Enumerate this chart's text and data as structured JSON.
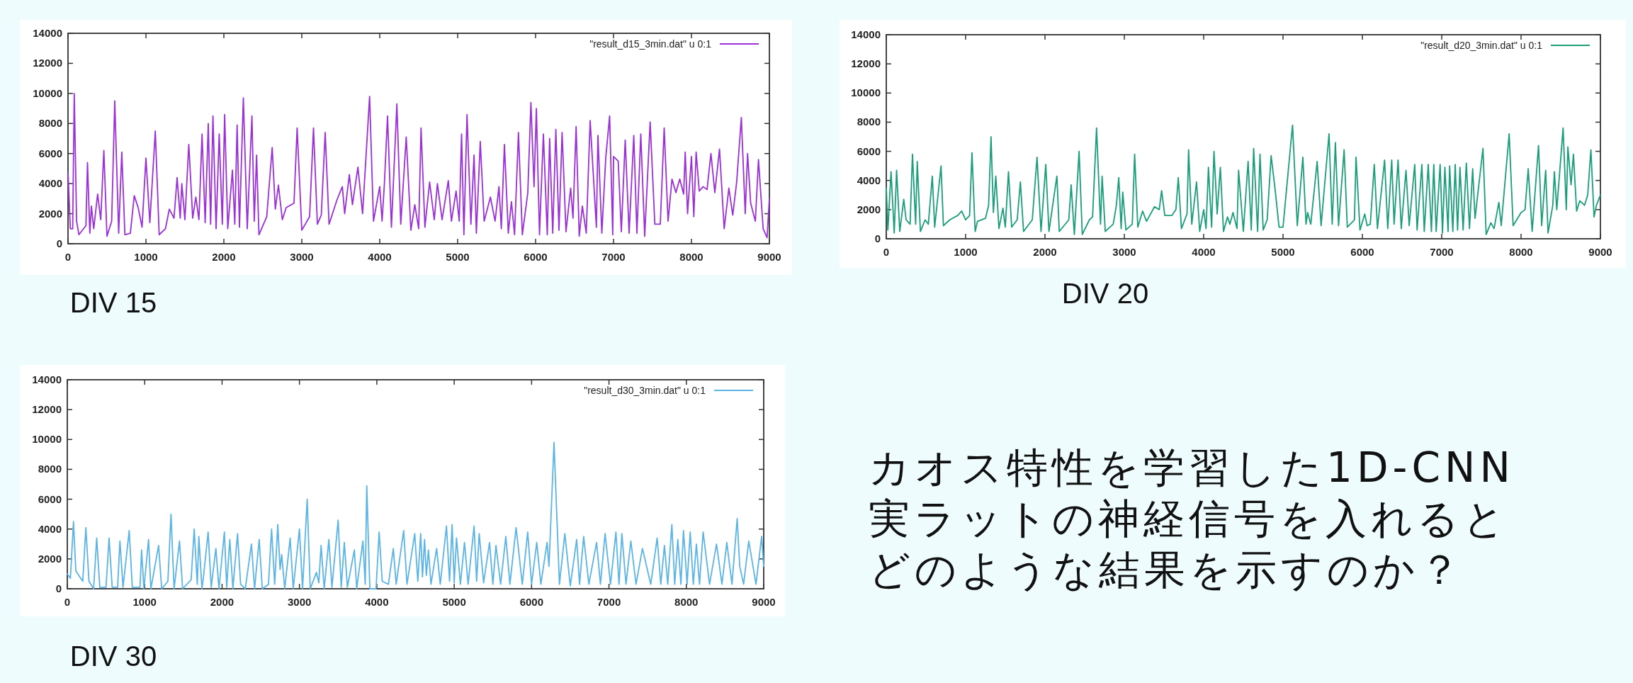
{
  "chart_data": [
    {
      "type": "line",
      "title": "DIV 15",
      "xlim": [
        0,
        9000
      ],
      "ylim": [
        0,
        14000
      ],
      "xticks": [
        0,
        1000,
        2000,
        3000,
        4000,
        5000,
        6000,
        7000,
        8000,
        9000
      ],
      "yticks": [
        0,
        2000,
        4000,
        6000,
        8000,
        10000,
        12000,
        14000
      ],
      "grid": false,
      "legend": "top right",
      "marker": "none",
      "line_style": "solid",
      "series": [
        {
          "name": "\"result_d15_3min.dat\" u 0:1",
          "color": "#9b30d9",
          "x": [
            0,
            30,
            60,
            80,
            110,
            140,
            200,
            230,
            250,
            280,
            300,
            330,
            380,
            420,
            460,
            500,
            560,
            600,
            650,
            690,
            730,
            800,
            850,
            900,
            950,
            1000,
            1050,
            1120,
            1170,
            1250,
            1300,
            1360,
            1400,
            1440,
            1460,
            1500,
            1550,
            1600,
            1640,
            1680,
            1720,
            1760,
            1800,
            1830,
            1860,
            1900,
            1940,
            1980,
            2010,
            2050,
            2110,
            2140,
            2170,
            2200,
            2250,
            2300,
            2360,
            2390,
            2420,
            2450,
            2550,
            2620,
            2660,
            2700,
            2750,
            2800,
            2900,
            2940,
            3000,
            3100,
            3150,
            3200,
            3250,
            3300,
            3350,
            3450,
            3520,
            3550,
            3610,
            3650,
            3720,
            3780,
            3870,
            3920,
            4000,
            4030,
            4060,
            4100,
            4150,
            4220,
            4270,
            4340,
            4400,
            4450,
            4500,
            4530,
            4580,
            4640,
            4700,
            4740,
            4800,
            4880,
            4920,
            4980,
            5020,
            5050,
            5080,
            5120,
            5170,
            5210,
            5240,
            5290,
            5340,
            5420,
            5480,
            5530,
            5560,
            5600,
            5650,
            5690,
            5730,
            5780,
            5830,
            5900,
            5940,
            5980,
            6010,
            6050,
            6100,
            6150,
            6180,
            6220,
            6260,
            6300,
            6340,
            6390,
            6450,
            6480,
            6520,
            6560,
            6600,
            6650,
            6700,
            6780,
            6800,
            6850,
            6900,
            6950,
            6990,
            7000,
            7060,
            7100,
            7150,
            7200,
            7260,
            7300,
            7350,
            7400,
            7470,
            7530,
            7600,
            7650,
            7700,
            7750,
            7800,
            7850,
            7900,
            7920,
            7950,
            8000,
            8030,
            8060,
            8100,
            8150,
            8200,
            8250,
            8300,
            8360,
            8420,
            8480,
            8530,
            8580,
            8640,
            8690,
            8720,
            8760,
            8820,
            8860,
            8920,
            8970,
            9000
          ],
          "values": [
            4700,
            1000,
            1000,
            10000,
            1500,
            600,
            1000,
            1200,
            5400,
            700,
            2500,
            1000,
            3300,
            1600,
            6200,
            500,
            1500,
            9500,
            700,
            6100,
            600,
            700,
            3200,
            2400,
            1100,
            5700,
            1400,
            7500,
            600,
            1000,
            2300,
            1700,
            4400,
            1700,
            4000,
            1600,
            6600,
            1700,
            3100,
            1600,
            7300,
            1400,
            8000,
            1300,
            8500,
            1000,
            7300,
            1300,
            8600,
            1000,
            4900,
            1300,
            7900,
            1100,
            9700,
            1000,
            8500,
            1500,
            5900,
            600,
            1800,
            6400,
            2300,
            3900,
            1600,
            2400,
            2700,
            7700,
            900,
            1800,
            7700,
            1300,
            1900,
            7400,
            1300,
            2900,
            3800,
            2000,
            4600,
            2600,
            5100,
            2000,
            9800,
            1500,
            3800,
            1500,
            4000,
            8500,
            1100,
            9300,
            1300,
            7100,
            900,
            2600,
            1000,
            7700,
            1100,
            4100,
            1600,
            4000,
            1600,
            4200,
            1500,
            3500,
            1500,
            7300,
            600,
            8600,
            1300,
            5900,
            700,
            6800,
            1500,
            3100,
            1500,
            3800,
            1000,
            6600,
            700,
            2800,
            600,
            7400,
            600,
            3400,
            9400,
            3800,
            9000,
            600,
            7300,
            600,
            7000,
            700,
            7600,
            900,
            7400,
            800,
            3700,
            1700,
            7800,
            500,
            2500,
            700,
            8200,
            1100,
            7200,
            700,
            5700,
            8500,
            600,
            5800,
            5500,
            800,
            6900,
            700,
            7200,
            700,
            7300,
            500,
            8100,
            1300,
            1300,
            7700,
            1500,
            4300,
            3400,
            4300,
            3300,
            6100,
            2000,
            5800,
            1800,
            6100,
            3500,
            3800,
            3600,
            6000,
            3400,
            6300,
            1000,
            3700,
            1900,
            4100,
            8400,
            2000,
            6000,
            2700,
            1500,
            5600,
            1000,
            400,
            3000
          ]
        }
      ]
    },
    {
      "type": "line",
      "title": "DIV 20",
      "xlim": [
        0,
        9000
      ],
      "ylim": [
        0,
        14000
      ],
      "xticks": [
        0,
        1000,
        2000,
        3000,
        4000,
        5000,
        6000,
        7000,
        8000,
        9000
      ],
      "yticks": [
        0,
        2000,
        4000,
        6000,
        8000,
        10000,
        12000,
        14000
      ],
      "grid": false,
      "legend": "top right",
      "marker": "none",
      "line_style": "solid",
      "series": [
        {
          "name": "\"result_d20_3min.dat\" u 0:1",
          "color": "#1a9e7a",
          "x": [
            0,
            20,
            60,
            100,
            130,
            170,
            220,
            250,
            300,
            330,
            370,
            390,
            430,
            490,
            530,
            580,
            610,
            690,
            720,
            800,
            900,
            950,
            1000,
            1050,
            1080,
            1120,
            1150,
            1250,
            1290,
            1320,
            1350,
            1380,
            1420,
            1470,
            1500,
            1540,
            1580,
            1650,
            1690,
            1730,
            1840,
            1900,
            1950,
            2010,
            2050,
            2150,
            2180,
            2300,
            2330,
            2370,
            2430,
            2470,
            2560,
            2600,
            2650,
            2700,
            2720,
            2760,
            2860,
            2900,
            2930,
            2960,
            2980,
            3020,
            3100,
            3130,
            3170,
            3230,
            3280,
            3380,
            3440,
            3470,
            3510,
            3600,
            3650,
            3680,
            3720,
            3790,
            3810,
            3850,
            3910,
            3950,
            4000,
            4030,
            4060,
            4100,
            4130,
            4170,
            4210,
            4250,
            4300,
            4330,
            4370,
            4420,
            4440,
            4500,
            4560,
            4600,
            4630,
            4680,
            4710,
            4750,
            4800,
            4850,
            4900,
            4950,
            5000,
            5120,
            5180,
            5250,
            5290,
            5310,
            5350,
            5430,
            5480,
            5580,
            5620,
            5660,
            5700,
            5770,
            5810,
            5900,
            5920,
            5970,
            6030,
            6060,
            6100,
            6150,
            6190,
            6280,
            6320,
            6370,
            6400,
            6450,
            6490,
            6550,
            6590,
            6660,
            6690,
            6750,
            6780,
            6830,
            6870,
            6900,
            6930,
            6980,
            7010,
            7040,
            7080,
            7100,
            7140,
            7170,
            7200,
            7230,
            7270,
            7310,
            7350,
            7390,
            7420,
            7520,
            7560,
            7620,
            7660,
            7720,
            7750,
            7850,
            7900,
            8000,
            8050,
            8090,
            8140,
            8220,
            8260,
            8310,
            8340,
            8400,
            8420,
            8450,
            8530,
            8570,
            8590,
            8630,
            8660,
            8700,
            8740,
            8800,
            8840,
            8880,
            8920,
            8950,
            9000
          ],
          "values": [
            3500,
            600,
            4600,
            400,
            4700,
            500,
            2700,
            1300,
            1000,
            5800,
            1000,
            5300,
            500,
            1300,
            1000,
            4300,
            800,
            5000,
            900,
            1300,
            1600,
            1900,
            1300,
            1600,
            5900,
            500,
            1200,
            1400,
            2300,
            7000,
            1800,
            4300,
            700,
            2100,
            800,
            4600,
            800,
            1300,
            3900,
            500,
            1300,
            5600,
            500,
            5100,
            500,
            4300,
            500,
            1300,
            3700,
            300,
            6000,
            300,
            1300,
            1500,
            7600,
            1000,
            4300,
            500,
            1000,
            2300,
            4200,
            700,
            3200,
            600,
            1000,
            5800,
            800,
            1900,
            1200,
            2200,
            2000,
            3300,
            1600,
            1600,
            2000,
            4200,
            700,
            1700,
            6100,
            1000,
            3900,
            500,
            2000,
            700,
            4900,
            800,
            6000,
            1700,
            4900,
            500,
            1500,
            1000,
            1800,
            700,
            4700,
            500,
            5300,
            600,
            6200,
            500,
            5800,
            600,
            1300,
            5700,
            3400,
            800,
            800,
            7800,
            900,
            5600,
            1000,
            1800,
            1000,
            5300,
            900,
            7200,
            1000,
            6600,
            900,
            6100,
            800,
            1300,
            5600,
            600,
            1700,
            900,
            1000,
            5100,
            700,
            5400,
            700,
            5400,
            1000,
            5400,
            700,
            4700,
            900,
            5100,
            600,
            5100,
            500,
            5100,
            500,
            5100,
            500,
            5100,
            400,
            4900,
            500,
            5000,
            500,
            5100,
            600,
            4900,
            600,
            5200,
            700,
            4800,
            1400,
            6200,
            300,
            1100,
            700,
            2500,
            900,
            7200,
            900,
            1800,
            2000,
            4800,
            500,
            6400,
            900,
            4700,
            400,
            2300,
            4600,
            2000,
            7600,
            2000,
            6300,
            3700,
            5800,
            1900,
            2600,
            2300,
            3000,
            6100,
            1500,
            2300,
            3000
          ]
        }
      ]
    },
    {
      "type": "line",
      "title": "DIV 30",
      "xlim": [
        0,
        9000
      ],
      "ylim": [
        0,
        14000
      ],
      "xticks": [
        0,
        1000,
        2000,
        3000,
        4000,
        5000,
        6000,
        7000,
        8000,
        9000
      ],
      "yticks": [
        0,
        2000,
        4000,
        6000,
        8000,
        10000,
        12000,
        14000
      ],
      "grid": false,
      "legend": "top right",
      "marker": "none",
      "line_style": "solid",
      "series": [
        {
          "name": "\"result_d30_3min.dat\" u 0:1",
          "color": "#5ab4e5",
          "x": [
            0,
            40,
            80,
            110,
            200,
            240,
            280,
            340,
            380,
            420,
            500,
            540,
            580,
            650,
            680,
            720,
            800,
            840,
            940,
            960,
            990,
            1050,
            1080,
            1180,
            1220,
            1300,
            1340,
            1380,
            1450,
            1490,
            1600,
            1640,
            1680,
            1700,
            1740,
            1760,
            1820,
            1860,
            1920,
            1960,
            2030,
            2060,
            2100,
            2140,
            2200,
            2240,
            2300,
            2380,
            2420,
            2480,
            2520,
            2600,
            2640,
            2680,
            2720,
            2750,
            2770,
            2810,
            2880,
            2920,
            3000,
            3040,
            3100,
            3140,
            3220,
            3250,
            3280,
            3320,
            3380,
            3420,
            3500,
            3540,
            3580,
            3620,
            3710,
            3740,
            3820,
            3850,
            3870,
            3910,
            3990,
            4030,
            4070,
            4150,
            4213,
            4250,
            4347,
            4390,
            4490,
            4530,
            4567,
            4590,
            4617,
            4640,
            4667,
            4700,
            4773,
            4820,
            4900,
            4940,
            4973,
            5000,
            5030,
            5080,
            5133,
            5180,
            5257,
            5290,
            5323,
            5380,
            5457,
            5500,
            5540,
            5600,
            5667,
            5720,
            5800,
            5880,
            5950,
            6000,
            6067,
            6120,
            6200,
            6225,
            6290,
            6360,
            6430,
            6500,
            6583,
            6620,
            6673,
            6740,
            6840,
            6890,
            6950,
            7020,
            7090,
            7130,
            7167,
            7220,
            7283,
            7350,
            7433,
            7540,
            7623,
            7670,
            7717,
            7760,
            7813,
            7850,
            7890,
            7930,
            7963,
            8010,
            8050,
            8090,
            8130,
            8170,
            8217,
            8300,
            8390,
            8460,
            8523,
            8590,
            8657,
            8690,
            8740,
            8807,
            8900,
            8973,
            9000
          ],
          "values": [
            1000,
            700,
            4500,
            1200,
            500,
            4100,
            500,
            0,
            3400,
            100,
            100,
            3400,
            100,
            100,
            3200,
            100,
            3900,
            100,
            100,
            2600,
            0,
            3300,
            0,
            2900,
            0,
            500,
            5000,
            0,
            3200,
            0,
            600,
            4000,
            300,
            3500,
            0,
            800,
            3800,
            100,
            2700,
            0,
            3800,
            100,
            3300,
            0,
            3700,
            300,
            0,
            3000,
            0,
            3300,
            0,
            300,
            4000,
            300,
            4300,
            1300,
            2300,
            0,
            3400,
            0,
            4000,
            0,
            6000,
            0,
            1100,
            400,
            2900,
            0,
            3300,
            100,
            4600,
            100,
            3100,
            100,
            2600,
            0,
            3200,
            300,
            6900,
            0,
            0,
            3800,
            500,
            300,
            2700,
            300,
            3900,
            300,
            3700,
            500,
            3700,
            800,
            3300,
            900,
            2600,
            300,
            2700,
            300,
            4200,
            500,
            4300,
            400,
            3400,
            300,
            3100,
            300,
            4200,
            500,
            3700,
            400,
            3100,
            300,
            2900,
            300,
            3500,
            300,
            4100,
            300,
            3800,
            300,
            3100,
            300,
            3100,
            1500,
            9800,
            300,
            3700,
            200,
            3300,
            300,
            3500,
            300,
            3100,
            300,
            3700,
            300,
            3800,
            300,
            3700,
            300,
            3200,
            300,
            2700,
            300,
            3400,
            300,
            2900,
            300,
            4300,
            300,
            3300,
            300,
            3900,
            300,
            3800,
            300,
            3000,
            300,
            3800,
            300,
            3000,
            300,
            3100,
            300,
            4700,
            1500,
            300,
            3200,
            300,
            3500,
            1500
          ]
        }
      ]
    },
    {
      "type": "other",
      "annotations": [
        "カオス特性を学習した1D-CNN",
        "実ラットの神経信号を入れると",
        "どのような結果を示すのか？"
      ]
    }
  ]
}
